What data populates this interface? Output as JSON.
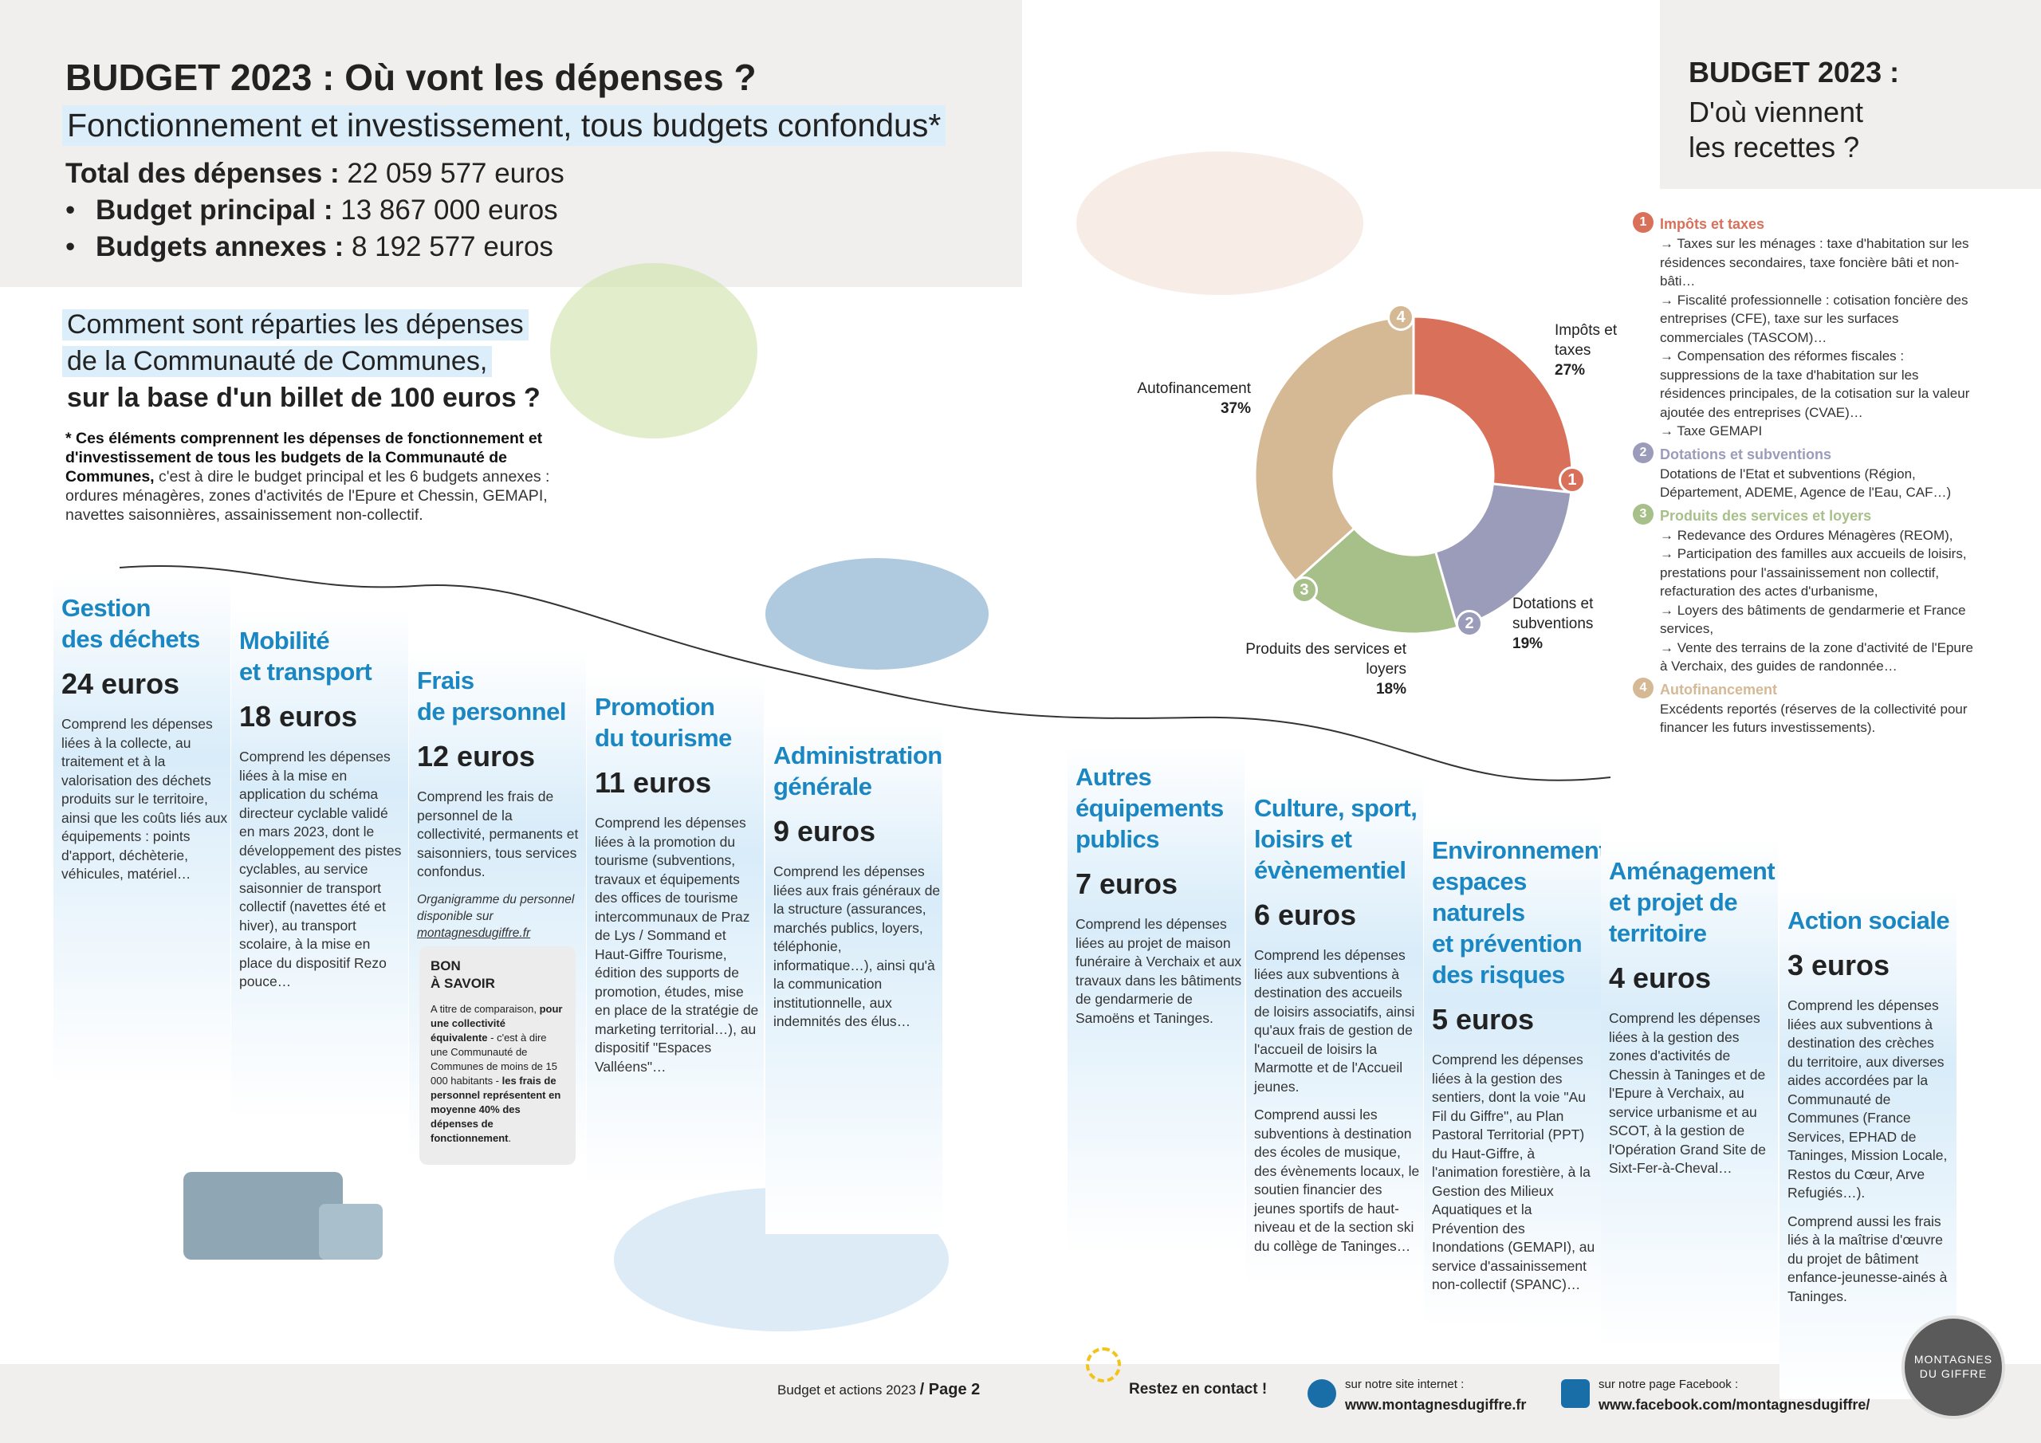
{
  "header": {
    "title": "BUDGET 2023 : Où vont les dépenses ?",
    "subtitle": "Fonctionnement et investissement, tous budgets confondus*",
    "totals": [
      {
        "label": "Total des dépenses :",
        "value": "22 059 577 euros"
      },
      {
        "label": "Budget principal :",
        "value": "13 867 000 euros"
      },
      {
        "label": "Budgets annexes :",
        "value": "8 192 577 euros"
      }
    ]
  },
  "question": [
    "Comment sont réparties les dépenses",
    "de la Communauté de Communes,",
    "sur la base d'un billet de 100 euros ?"
  ],
  "footnote": [
    "* Ces éléments comprennent les dépenses de fonctionnement et d'investissement de tous les budgets de la Communauté de Communes,",
    " c'est à dire le budget principal et les 6 budgets annexes : ordures ménagères, zones d'activités de l'Epure et Chessin, GEMAPI, navettes saisonnières, assainissement non-collectif."
  ],
  "depenses": [
    {
      "title": [
        "Gestion",
        "des déchets"
      ],
      "amount": "24 euros",
      "texts": [
        "Comprend les dépenses liées à la collecte, au traitement et à la valorisation des déchets produits sur le territoire, ainsi que les coûts liés aux équipements : points d'apport, déchèterie, véhicules, matériel…"
      ]
    },
    {
      "title": [
        "Mobilité",
        "et transport"
      ],
      "amount": "18 euros",
      "texts": [
        "Comprend les dépenses liées à la mise en application du schéma directeur cyclable validé en mars 2023, dont le développement des pistes cyclables, au service saisonnier de transport collectif (navettes été et hiver), au transport scolaire, à la mise en place du dispositif Rezo pouce…"
      ]
    },
    {
      "title": [
        "Frais",
        "de personnel"
      ],
      "amount": "12 euros",
      "texts": [
        "Comprend les frais de personnel de la collectivité, permanents et saisonniers, tous services confondus."
      ],
      "note": [
        "Organigramme du personnel disponible sur ",
        "montagnesdugiffre.fr"
      ]
    },
    {
      "title": [
        "Promotion",
        "du tourisme"
      ],
      "amount": "11 euros",
      "texts": [
        "Comprend les dépenses liées à la promotion du tourisme (subventions, travaux et équipements des offices de tourisme intercommunaux de Praz de Lys / Sommand et Haut-Giffre Tourisme, édition des supports de promotion, études, mise en place de la stratégie de marketing territorial…), au dispositif \"Espaces Valléens\"…"
      ]
    },
    {
      "title": [
        "Administration",
        "générale"
      ],
      "amount": "9 euros",
      "texts": [
        "Comprend les dépenses liées aux frais généraux de la structure (assurances, marchés publics, loyers, téléphonie, informatique…), ainsi qu'à la communication institutionnelle, aux indemnités des élus…"
      ]
    },
    {
      "title": [
        "Autres",
        "équipements",
        "publics"
      ],
      "amount": "7 euros",
      "texts": [
        "Comprend les dépenses liées au projet de maison funéraire à Verchaix et aux travaux dans les bâtiments de gendarmerie de Samoëns et Taninges."
      ]
    },
    {
      "title": [
        "Culture, sport,",
        "loisirs et",
        "évènementiel"
      ],
      "amount": "6 euros",
      "texts": [
        "Comprend les dépenses liées aux subventions à destination des accueils de loisirs associatifs, ainsi qu'aux frais de gestion de l'accueil de loisirs la Marmotte et de l'Accueil jeunes.",
        "Comprend aussi les subventions à destination des écoles de musique, des évènements locaux, le soutien financier des jeunes sportifs de haut-niveau et de la section ski du collège de Taninges…"
      ]
    },
    {
      "title": [
        "Environnement,",
        "espaces",
        "naturels",
        "et prévention",
        "des risques"
      ],
      "amount": "5 euros",
      "texts": [
        "Comprend les dépenses liées à la gestion des sentiers, dont la voie \"Au Fil du Giffre\", au Plan Pastoral Territorial (PPT) du Haut-Giffre, à l'animation forestière, à la Gestion des Milieux Aquatiques et la Prévention des Inondations (GEMAPI), au service d'assainissement non-collectif (SPANC)…"
      ]
    },
    {
      "title": [
        "Aménagement",
        "et projet de",
        "territoire"
      ],
      "amount": "4 euros",
      "texts": [
        "Comprend les dépenses liées à la gestion des zones d'activités de Chessin à Taninges et de l'Epure à Verchaix, au service urbanisme et au SCOT, à la gestion de l'Opération Grand Site de Sixt-Fer-à-Cheval…"
      ]
    },
    {
      "title": [
        "Action sociale"
      ],
      "amount": "3 euros",
      "texts": [
        "Comprend les dépenses liées aux subventions à destination des crèches du territoire, aux diverses aides accordées par la Communauté de Communes (France Services, EPHAD de Taninges, Mission Locale, Restos du Cœur, Arve Refugiés…).",
        "Comprend aussi les frais liés à la maîtrise d'œuvre du projet de bâtiment enfance-jeunesse-ainés à Taninges."
      ]
    }
  ],
  "bon_a_savoir": {
    "title": [
      "BON",
      "À SAVOIR"
    ],
    "parts": [
      "A titre de comparaison, ",
      "pour une collectivité équivalente",
      " - c'est à dire une Communauté de Communes de moins de 15 000 habitants - ",
      "les frais de personnel représentent en moyenne 40% des dépenses de fonctionnement",
      "."
    ]
  },
  "recettes": {
    "title": "BUDGET 2023 :",
    "subtitle": [
      "D'où viennent",
      "les recettes ?"
    ],
    "items": [
      {
        "number": 1,
        "title": "Impôts et taxes",
        "lines": [
          "→ Taxes sur les ménages : taxe d'habitation sur les résidences secondaires, taxe foncière bâti et non-bâti…",
          "→ Fiscalité professionnelle : cotisation foncière des entreprises (CFE), taxe sur les surfaces commerciales (TASCOM)…",
          "→ Compensation des réformes fiscales : suppressions de la taxe d'habitation sur les résidences principales, de la cotisation sur la valeur ajoutée des entreprises (CVAE)…",
          "→ Taxe GEMAPI"
        ]
      },
      {
        "number": 2,
        "title": "Dotations et subventions",
        "lines": [
          "Dotations de l'Etat et subventions (Région, Département, ADEME, Agence de l'Eau, CAF…)"
        ]
      },
      {
        "number": 3,
        "title": "Produits des services et loyers",
        "lines": [
          "→ Redevance des Ordures Ménagères (REOM),",
          "→ Participation des familles aux accueils de loisirs, prestations pour l'assainissement non collectif, refacturation des actes d'urbanisme,",
          "→ Loyers des bâtiments de gendarmerie et France services,",
          "→ Vente des terrains de la zone d'activité de l'Epure à Verchaix, des guides de randonnée…"
        ]
      },
      {
        "number": 4,
        "title": "Autofinancement",
        "lines": [
          "Excédents reportés (réserves de la collectivité pour financer les futurs investissements)."
        ]
      }
    ]
  },
  "chart_data": {
    "type": "donut",
    "categories": [
      "Impôts et taxes",
      "Dotations et subventions",
      "Produits des services et loyers",
      "Autofinancement"
    ],
    "values": [
      27,
      19,
      18,
      37
    ],
    "value_labels": [
      "27%",
      "19%",
      "18%",
      "37%"
    ],
    "colors": [
      "#d9705a",
      "#9b9cba",
      "#a7bf88",
      "#d5b995"
    ]
  },
  "footer": {
    "publication": "Budget et actions 2023",
    "page": "/ Page 2",
    "contact": "Restez en contact !",
    "site_label": "sur notre site internet :",
    "site": "www.montagnesdugiffre.fr",
    "facebook_label": "sur notre page Facebook :",
    "facebook": "www.facebook.com/montagnesdugiffre/",
    "logo": [
      "MONTAGNES",
      "DU GIFFRE"
    ]
  }
}
